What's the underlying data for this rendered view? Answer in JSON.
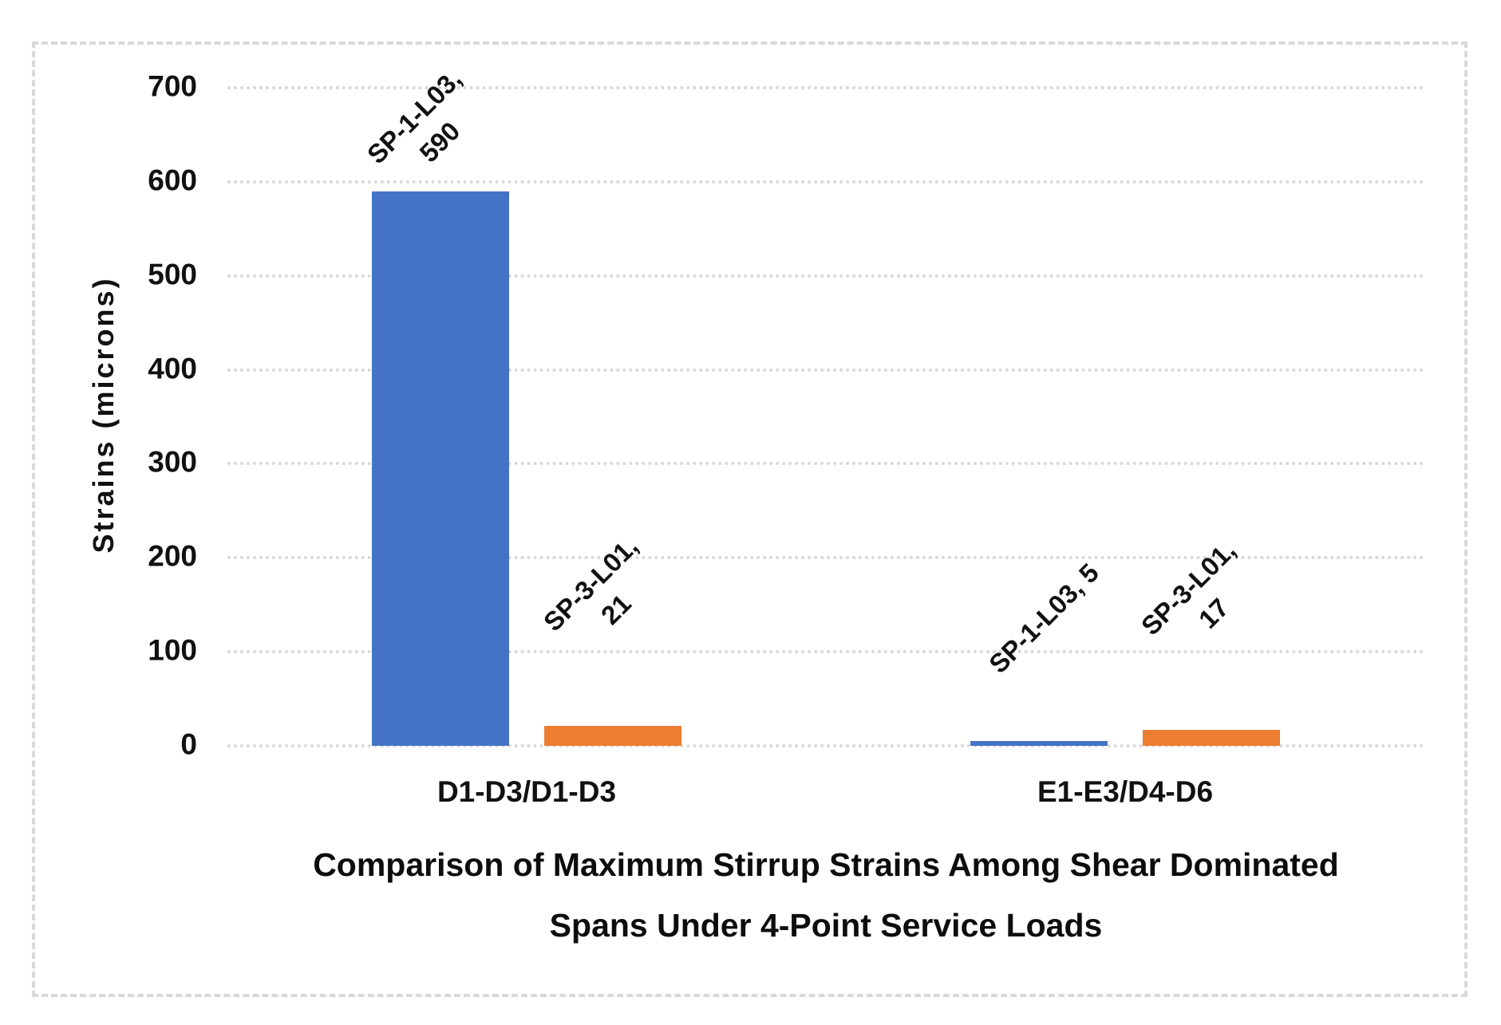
{
  "chart_data": {
    "type": "bar",
    "title_lines": [
      "Comparison of Maximum Stirrup Strains Among Shear Dominated",
      "Spans Under 4-Point Service Loads"
    ],
    "ylabel": "Strains (microns)",
    "xlabel": "",
    "categories": [
      "D1-D3/D1-D3",
      "E1-E3/D4-D6"
    ],
    "series": [
      {
        "name": "SP-1-L03",
        "color": "#4472C4",
        "values": [
          590,
          5
        ]
      },
      {
        "name": "SP-3-L01",
        "color": "#ED7D31",
        "values": [
          21,
          17
        ]
      }
    ],
    "data_labels": [
      {
        "lines": [
          "SP-1-L03,",
          "590"
        ]
      },
      {
        "lines": [
          "SP-3-L01,",
          "21"
        ]
      },
      {
        "lines": [
          "SP-1-L03, 5"
        ]
      },
      {
        "lines": [
          "SP-3-L01,",
          "17"
        ]
      }
    ],
    "ylim": [
      0,
      700
    ],
    "yticks": [
      0,
      100,
      200,
      300,
      400,
      500,
      600,
      700
    ],
    "grid": "horizontal-dotted",
    "legend": "none",
    "data_label_rotation_deg": -45,
    "frame_border_color": "#d9d9d9",
    "gridline_color": "#d8d8d8"
  }
}
